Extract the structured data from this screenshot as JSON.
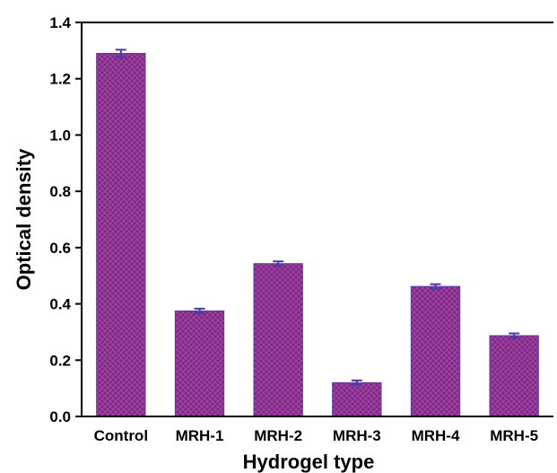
{
  "chart_data": {
    "type": "bar",
    "title": "",
    "xlabel": "Hydrogel type",
    "ylabel": "Optical density",
    "categories": [
      "Control",
      "MRH-1",
      "MRH-2",
      "MRH-3",
      "MRH-4",
      "MRH-5"
    ],
    "values": [
      1.29,
      0.375,
      0.543,
      0.12,
      0.462,
      0.287
    ],
    "errors": [
      0.013,
      0.008,
      0.008,
      0.008,
      0.008,
      0.008
    ],
    "ylim": [
      0,
      1.4
    ],
    "yticks": [
      0.0,
      0.2,
      0.4,
      0.6,
      0.8,
      1.0,
      1.2,
      1.4
    ],
    "ytick_labels": [
      "0.0",
      "0.2",
      "0.4",
      "0.6",
      "0.8",
      "1.0",
      "1.2",
      "1.4"
    ],
    "grid": false,
    "legend": "none",
    "colors": {
      "bar_fill": "#7a2a96",
      "bar_hatch": "#b04a8a",
      "bar_edge": "#5a3a9e",
      "error_bar": "#4a3aa8",
      "axis": "#000000"
    }
  }
}
